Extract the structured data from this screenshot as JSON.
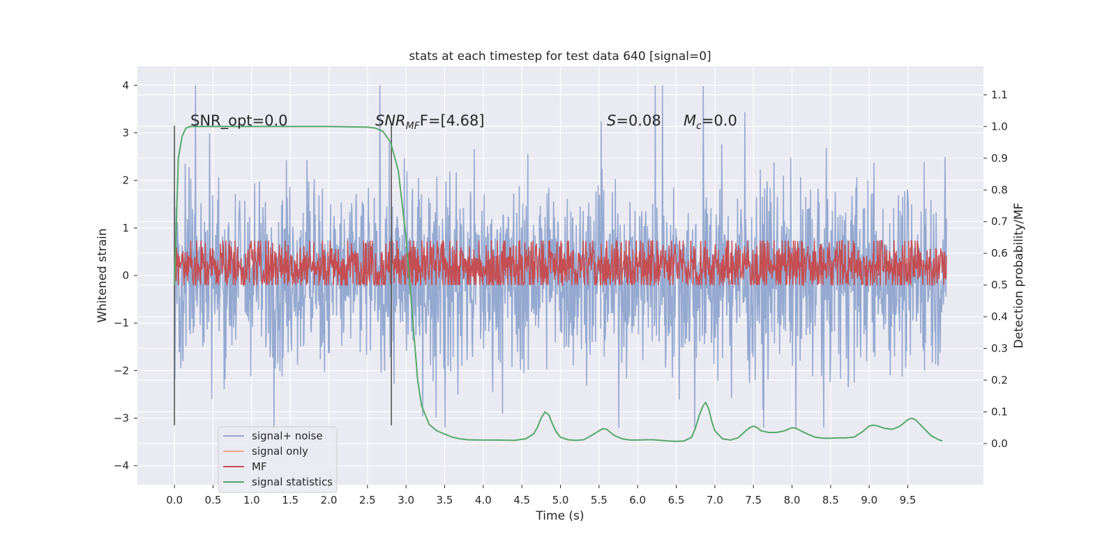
{
  "chart_data": {
    "type": "line",
    "title": "stats at each timestep for test data 640 [signal=0]",
    "xlabel": "Time (s)",
    "ylabel": "Whitened strain",
    "ylabel_right": "Detection probability/MF",
    "xlim": [
      -0.48,
      10.48
    ],
    "ylim": [
      -4.4,
      4.4
    ],
    "ylim_right": [
      -0.13,
      1.19
    ],
    "x_ticks": [
      "0.0",
      "0.5",
      "1.0",
      "1.5",
      "2.0",
      "2.5",
      "3.0",
      "3.5",
      "4.0",
      "4.5",
      "5.0",
      "5.5",
      "6.0",
      "6.5",
      "7.0",
      "7.5",
      "8.0",
      "8.5",
      "9.0",
      "9.5"
    ],
    "y_ticks": [
      "4",
      "3",
      "2",
      "1",
      "0",
      "−1",
      "−2",
      "−3",
      "−4"
    ],
    "y_ticks_right": [
      "1.1",
      "1.0",
      "0.9",
      "0.8",
      "0.7",
      "0.6",
      "0.5",
      "0.4",
      "0.3",
      "0.2",
      "0.1",
      "0.0"
    ],
    "grid": true,
    "legend_position": "lower-left",
    "annotations": {
      "snr_opt": "SNR_opt=0.0",
      "snr_mf_main": "SNR",
      "snr_mf_sub": "MF",
      "snr_mf_tail": "F=[4.68]",
      "s_var": "S",
      "s_tail": "=0.08",
      "mc_var": "M",
      "mc_sub": "c",
      "mc_tail": "=0.0"
    },
    "vertical_lines": [
      0.0,
      2.81
    ],
    "series": [
      {
        "name": "signal+ noise",
        "color": "#8fa4cd",
        "description_range": [
          -3.2,
          4.0
        ],
        "x_range": [
          0.0,
          10.0
        ]
      },
      {
        "name": "signal only",
        "color": "#e8a58a",
        "x_range": [
          0.0,
          10.0
        ]
      },
      {
        "name": "MF",
        "color": "#c44e52",
        "x_range": [
          0.0,
          10.0
        ],
        "typical_range": [
          0.05,
          0.95
        ]
      },
      {
        "name": "signal statistics",
        "color": "#55a868",
        "axis": "right",
        "x": [
          0.0,
          0.05,
          0.1,
          0.15,
          0.2,
          0.3,
          0.5,
          1.0,
          1.5,
          2.0,
          2.5,
          2.6,
          2.7,
          2.8,
          2.9,
          3.0,
          3.05,
          3.1,
          3.15,
          3.2,
          3.3,
          3.4,
          3.5,
          3.6,
          3.7,
          3.8,
          4.0,
          4.2,
          4.4,
          4.55,
          4.65,
          4.7,
          4.75,
          4.8,
          4.85,
          4.9,
          4.95,
          5.0,
          5.1,
          5.2,
          5.3,
          5.4,
          5.5,
          5.55,
          5.6,
          5.65,
          5.7,
          5.8,
          5.9,
          6.0,
          6.1,
          6.2,
          6.3,
          6.4,
          6.5,
          6.6,
          6.7,
          6.75,
          6.8,
          6.85,
          6.88,
          6.92,
          6.96,
          7.0,
          7.1,
          7.2,
          7.3,
          7.4,
          7.45,
          7.5,
          7.55,
          7.6,
          7.7,
          7.8,
          7.9,
          8.0,
          8.05,
          8.1,
          8.2,
          8.3,
          8.4,
          8.5,
          8.6,
          8.7,
          8.8,
          8.9,
          9.0,
          9.05,
          9.1,
          9.2,
          9.3,
          9.4,
          9.5,
          9.55,
          9.6,
          9.7,
          9.8,
          9.9,
          9.95
        ],
        "values": [
          0.5,
          0.9,
          0.97,
          0.995,
          1.0,
          1.0,
          1.0,
          1.0,
          1.0,
          1.0,
          0.998,
          0.995,
          0.985,
          0.95,
          0.86,
          0.65,
          0.5,
          0.35,
          0.2,
          0.12,
          0.06,
          0.04,
          0.03,
          0.02,
          0.015,
          0.012,
          0.011,
          0.011,
          0.01,
          0.015,
          0.03,
          0.05,
          0.08,
          0.1,
          0.09,
          0.06,
          0.035,
          0.02,
          0.012,
          0.01,
          0.012,
          0.025,
          0.04,
          0.047,
          0.045,
          0.035,
          0.025,
          0.015,
          0.011,
          0.011,
          0.012,
          0.012,
          0.01,
          0.008,
          0.007,
          0.008,
          0.02,
          0.05,
          0.09,
          0.12,
          0.13,
          0.11,
          0.07,
          0.04,
          0.015,
          0.011,
          0.018,
          0.04,
          0.05,
          0.055,
          0.05,
          0.04,
          0.035,
          0.035,
          0.04,
          0.05,
          0.048,
          0.042,
          0.03,
          0.02,
          0.017,
          0.017,
          0.018,
          0.018,
          0.02,
          0.035,
          0.055,
          0.058,
          0.056,
          0.048,
          0.045,
          0.055,
          0.075,
          0.08,
          0.075,
          0.05,
          0.025,
          0.012,
          0.008
        ]
      }
    ]
  }
}
